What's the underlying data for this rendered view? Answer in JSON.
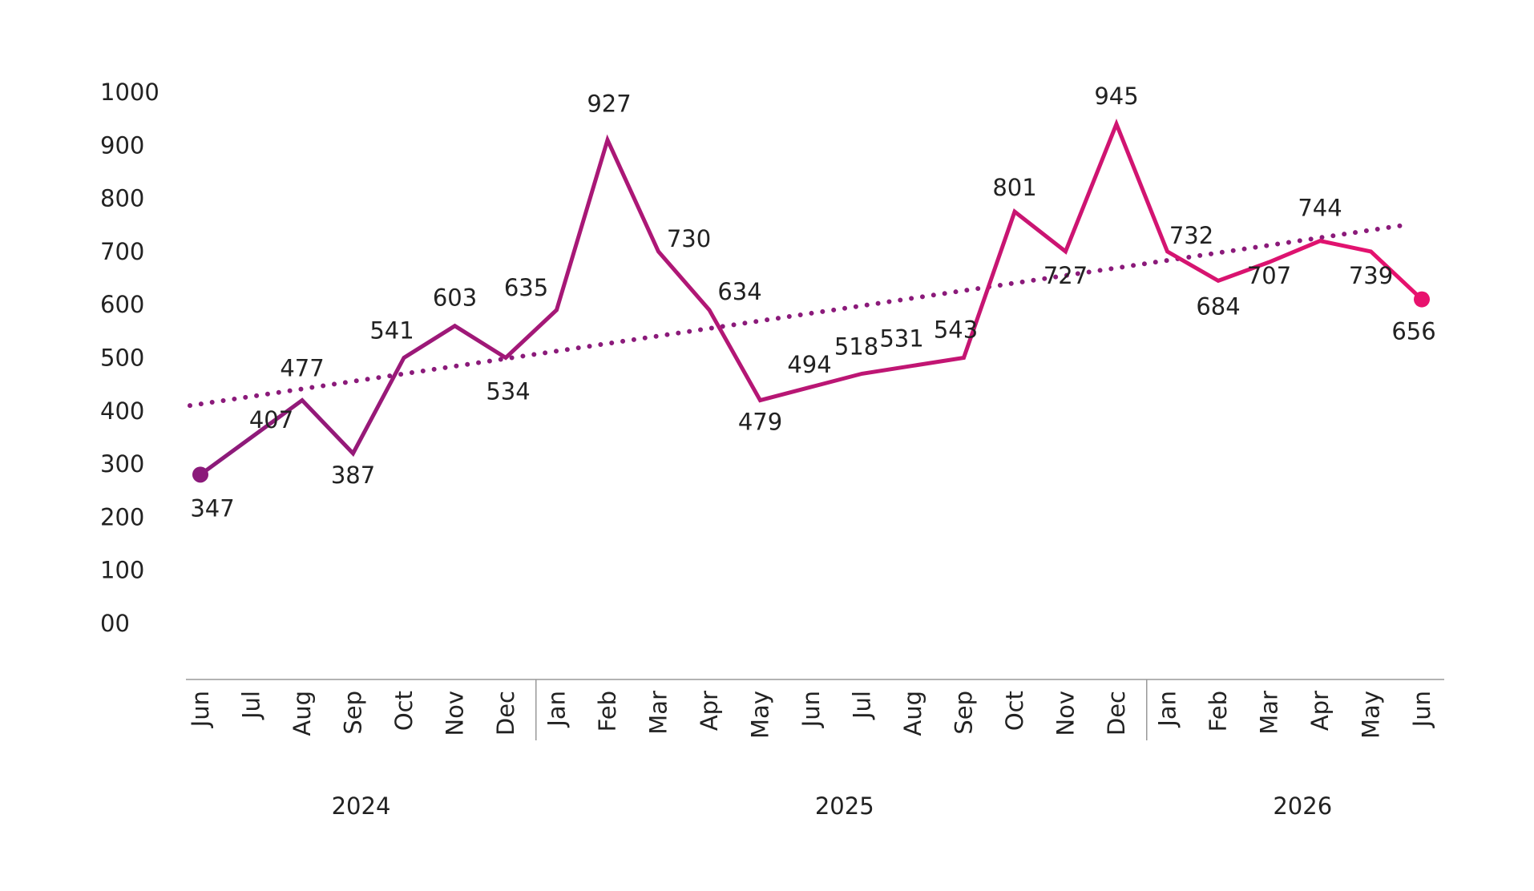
{
  "chart_data": {
    "type": "line",
    "x": [
      "Jun",
      "Jul",
      "Aug",
      "Sep",
      "Oct",
      "Nov",
      "Dec",
      "Jan",
      "Feb",
      "Mar",
      "Apr",
      "May",
      "Jun",
      "Jul",
      "Aug",
      "Sep",
      "Oct",
      "Nov",
      "Dec",
      "Jan",
      "Feb",
      "Mar",
      "Apr",
      "May",
      "Jun"
    ],
    "years": [
      {
        "label": "2024",
        "start_index": 0,
        "end_index": 6
      },
      {
        "label": "2025",
        "start_index": 7,
        "end_index": 18
      },
      {
        "label": "2026",
        "start_index": 19,
        "end_index": 24
      }
    ],
    "series": [
      {
        "values": [
          347,
          407,
          477,
          387,
          541,
          603,
          534,
          635,
          927,
          730,
          634,
          479,
          494,
          518,
          531,
          543,
          801,
          727,
          945,
          732,
          684,
          707,
          744,
          739,
          656
        ]
      }
    ],
    "plotted_y": [
      280,
      350,
      420,
      320,
      500,
      560,
      500,
      590,
      910,
      700,
      590,
      420,
      445,
      470,
      485,
      500,
      775,
      700,
      940,
      700,
      645,
      680,
      720,
      700,
      610
    ],
    "trendline": {
      "style": "dotted",
      "start": 410,
      "end": 750
    },
    "yticks": [
      "00",
      "100",
      "200",
      "300",
      "400",
      "500",
      "600",
      "700",
      "800",
      "900",
      "1000"
    ],
    "ylim": [
      0,
      1000
    ],
    "grid": false,
    "legend": "none",
    "colors": {
      "start": "#8b1a7a",
      "end": "#e8126e",
      "trend": "#8b1a7a",
      "axis": "#9a9a9a",
      "text": "#222222"
    }
  }
}
